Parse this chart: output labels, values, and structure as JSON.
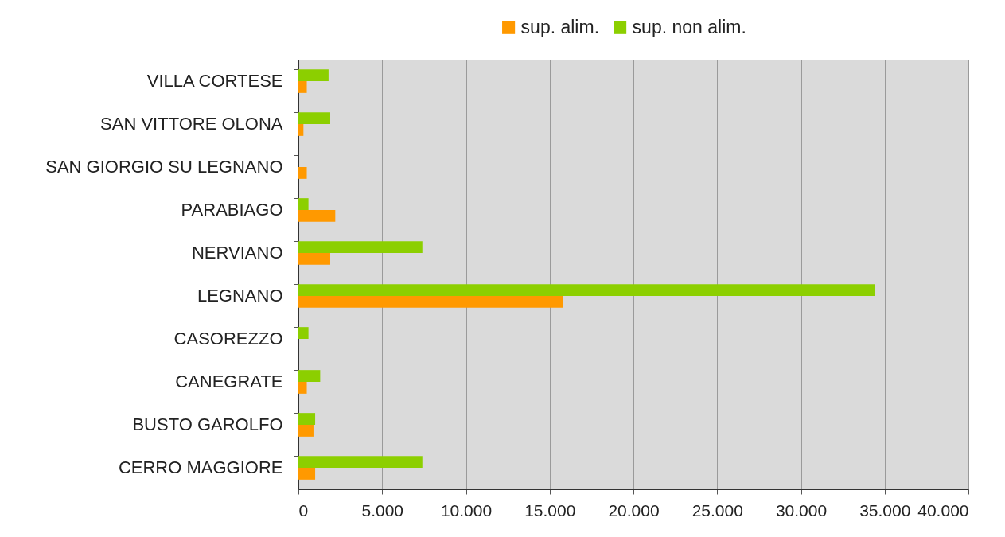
{
  "chart_data": {
    "type": "bar",
    "orientation": "horizontal",
    "categories": [
      "VILLA CORTESE",
      "SAN VITTORE OLONA",
      "SAN GIORGIO SU LEGNANO",
      "PARABIAGO",
      "NERVIANO",
      "LEGNANO",
      "CASOREZZO",
      "CANEGRATE",
      "BUSTO GAROLFO",
      "CERRO MAGGIORE"
    ],
    "series": [
      {
        "name": "sup. alim.",
        "color": "#ff9900",
        "values": [
          500,
          300,
          500,
          2200,
          1900,
          15800,
          null,
          500,
          900,
          1000
        ]
      },
      {
        "name": "sup. non alim.",
        "color": "#8ccf00",
        "values": [
          1800,
          1900,
          null,
          600,
          7400,
          34400,
          600,
          1300,
          1000,
          7400
        ]
      }
    ],
    "xlim": [
      0,
      40000
    ],
    "xticks": [
      {
        "value": 0,
        "label": "0"
      },
      {
        "value": 5000,
        "label": "5.000"
      },
      {
        "value": 10000,
        "label": "10.000"
      },
      {
        "value": 15000,
        "label": "15.000"
      },
      {
        "value": 20000,
        "label": "20.000"
      },
      {
        "value": 25000,
        "label": "25.000"
      },
      {
        "value": 30000,
        "label": "30.000"
      },
      {
        "value": 35000,
        "label": "35.000"
      },
      {
        "value": 40000,
        "label": "40.000"
      }
    ],
    "grid": "x",
    "legend": "top"
  }
}
